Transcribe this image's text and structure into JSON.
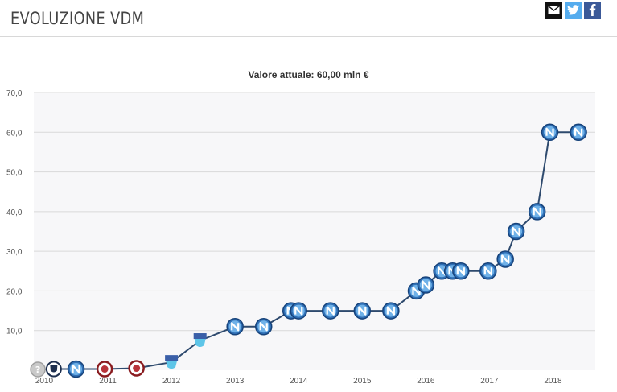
{
  "header": {
    "title": "EVOLUZIONE VDM",
    "share": [
      {
        "name": "email-share-button",
        "icon": "mail-icon"
      },
      {
        "name": "twitter-share-button",
        "icon": "twitter-icon"
      },
      {
        "name": "facebook-share-button",
        "icon": "facebook-icon"
      }
    ]
  },
  "chart_data": {
    "type": "line",
    "title": "Valore attuale: 60,00 mln €",
    "xlabel": "",
    "ylabel": "",
    "ylim": [
      0,
      70
    ],
    "xlim": [
      2010,
      2018.5
    ],
    "yticks": [
      "0",
      "10,0",
      "20,0",
      "30,0",
      "40,0",
      "50,0",
      "60,0",
      "70,0"
    ],
    "xticks": [
      "2010",
      "2011",
      "2012",
      "2013",
      "2014",
      "2015",
      "2016",
      "2017",
      "2018"
    ],
    "grid": true,
    "colors": {
      "line": "#2e4a6e",
      "grid": "#d9d9d9",
      "plot_bg": "#f7f7f9"
    },
    "series": [
      {
        "values": [
          {
            "x": 2009.9,
            "y": 0.2,
            "badge": "unknown"
          },
          {
            "x": 2010.15,
            "y": 0.3,
            "badge": "shield-dark"
          },
          {
            "x": 2010.5,
            "y": 0.3,
            "badge": "napoli"
          },
          {
            "x": 2010.95,
            "y": 0.3,
            "badge": "red-crest"
          },
          {
            "x": 2011.45,
            "y": 0.5,
            "badge": "red-crest"
          },
          {
            "x": 2012.0,
            "y": 2.0,
            "badge": "pescara"
          },
          {
            "x": 2012.45,
            "y": 7.5,
            "badge": "pescara"
          },
          {
            "x": 2013.0,
            "y": 11.0,
            "badge": "napoli"
          },
          {
            "x": 2013.45,
            "y": 11.0,
            "badge": "napoli"
          },
          {
            "x": 2013.88,
            "y": 15.0,
            "badge": "napoli"
          },
          {
            "x": 2014.0,
            "y": 15.0,
            "badge": "napoli"
          },
          {
            "x": 2014.5,
            "y": 15.0,
            "badge": "napoli"
          },
          {
            "x": 2015.0,
            "y": 15.0,
            "badge": "napoli"
          },
          {
            "x": 2015.45,
            "y": 15.0,
            "badge": "napoli"
          },
          {
            "x": 2015.85,
            "y": 20.0,
            "badge": "napoli"
          },
          {
            "x": 2016.0,
            "y": 21.5,
            "badge": "napoli"
          },
          {
            "x": 2016.25,
            "y": 25.0,
            "badge": "napoli"
          },
          {
            "x": 2016.42,
            "y": 25.0,
            "badge": "napoli"
          },
          {
            "x": 2016.55,
            "y": 25.0,
            "badge": "napoli"
          },
          {
            "x": 2016.98,
            "y": 25.0,
            "badge": "napoli"
          },
          {
            "x": 2017.25,
            "y": 28.0,
            "badge": "napoli"
          },
          {
            "x": 2017.42,
            "y": 35.0,
            "badge": "napoli"
          },
          {
            "x": 2017.75,
            "y": 40.0,
            "badge": "napoli"
          },
          {
            "x": 2017.95,
            "y": 60.0,
            "badge": "napoli"
          },
          {
            "x": 2018.4,
            "y": 60.0,
            "badge": "napoli"
          }
        ]
      }
    ]
  }
}
